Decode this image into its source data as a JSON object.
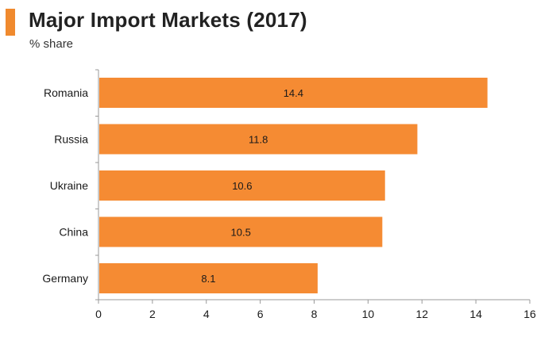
{
  "chart_data": {
    "type": "bar",
    "orientation": "horizontal",
    "title": "Major Import Markets (2017)",
    "subtitle": "% share",
    "categories": [
      "Romania",
      "Russia",
      "Ukraine",
      "China",
      "Germany"
    ],
    "values": [
      14.4,
      11.8,
      10.6,
      10.5,
      8.1
    ],
    "data_labels": [
      "14.4",
      "11.8",
      "10.6",
      "10.5",
      "8.1"
    ],
    "xlim": [
      0,
      16
    ],
    "xticks": [
      "0",
      "2",
      "4",
      "6",
      "8",
      "10",
      "12",
      "14",
      "16"
    ],
    "xlabel": "",
    "ylabel": "",
    "grid": false,
    "colors": {
      "bar": "#f58b33",
      "accent": "#f08a2e",
      "axis": "#999999"
    }
  }
}
